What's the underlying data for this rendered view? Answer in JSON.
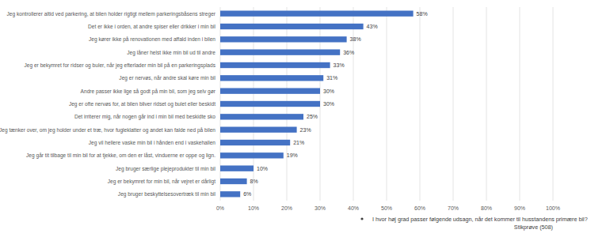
{
  "chart_data": {
    "type": "bar",
    "orientation": "horizontal",
    "categories": [
      "Jeg kontrollerer altid ved parkering, at bilen holder rigtigt mellem parkeringsbåsens streger",
      "Det er ikke i orden, at andre spiser eller drikker i min bil",
      "Jeg kører ikke på renovationen med affald inden i bilen",
      "Jeg låner helst ikke min bil ud til andre",
      "Jeg er bekymret for ridser og buler, når jeg efterlader min bil på en parkeringsplads",
      "Jeg er nervøs, når andre skal køre min bil",
      "Andre passer ikke lige så godt på min bil, som jeg selv gør",
      "Jeg er ofte nervøs for, at bilen bliver ridset og bulet eller beskidt",
      "Det irriterer mig, når nogen går ind i min bil med beskidte sko",
      "Jeg tænker over, om jeg holder under et træ, hvor fugleklatter og andet kan falde ned på bilen",
      "Jeg vil hellere vaske min bil i hånden end i vaskehallen",
      "Jeg går tit tilbage til min bil for at tjekke, om den er låst, vinduerne er oppe og lign.",
      "Jeg bruger særlige plejeprodukter til min bil",
      "Jeg er bekymret for min bil, når vejret er dårligt",
      "Jeg bruger beskyttelsesovertræk til min bil"
    ],
    "series": [
      {
        "name": "I hvor høj grad passer følgende udsagn, når det kommer til husstandens primære bil?",
        "color": "#4472c4",
        "values": [
          58,
          43,
          38,
          36,
          33,
          31,
          30,
          30,
          25,
          23,
          21,
          19,
          10,
          8,
          6
        ],
        "value_labels": [
          "58%",
          "43%",
          "38%",
          "36%",
          "33%",
          "31%",
          "30%",
          "30%",
          "25%",
          "23%",
          "21%",
          "19%",
          "10%",
          "8%",
          "6%"
        ]
      }
    ],
    "xlim": [
      0,
      100
    ],
    "xticks": [
      {
        "value": 0,
        "label": "0%"
      },
      {
        "value": 10,
        "label": "10%"
      },
      {
        "value": 20,
        "label": "20%"
      },
      {
        "value": 30,
        "label": "30%"
      },
      {
        "value": 40,
        "label": "40%"
      },
      {
        "value": 50,
        "label": "50%"
      },
      {
        "value": 60,
        "label": "60%"
      },
      {
        "value": 70,
        "label": "70%"
      },
      {
        "value": 80,
        "label": "80%"
      },
      {
        "value": 90,
        "label": "90%"
      },
      {
        "value": 100,
        "label": "100%"
      }
    ],
    "grid": true,
    "data_labels": true,
    "legend": "bottom",
    "annotations": [
      "Stikprøve (508)"
    ]
  }
}
